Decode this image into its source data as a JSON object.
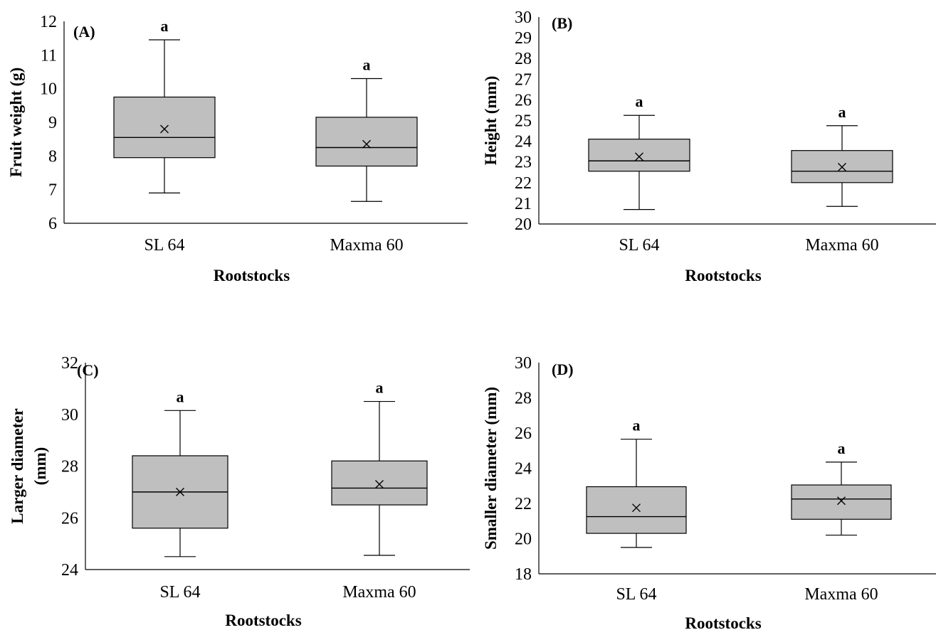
{
  "figure": {
    "colors": {
      "box_fill": "#bfbfbf",
      "stroke": "#000000"
    },
    "mean_marker": "x"
  },
  "chart_data": [
    {
      "type": "box",
      "panel_label": "(A)",
      "xlabel": "Rootstocks",
      "ylabel": "Fruit weight (g)",
      "ylim": [
        6,
        12
      ],
      "yticks": [
        6,
        7,
        8,
        9,
        10,
        11,
        12
      ],
      "categories": [
        "SL 64",
        "Maxma 60"
      ],
      "boxes": [
        {
          "min": 6.9,
          "q1": 7.95,
          "median": 8.55,
          "q3": 9.75,
          "max": 11.45,
          "mean": 8.8,
          "letter": "a"
        },
        {
          "min": 6.65,
          "q1": 7.7,
          "median": 8.25,
          "q3": 9.15,
          "max": 10.3,
          "mean": 8.35,
          "letter": "a"
        }
      ]
    },
    {
      "type": "box",
      "panel_label": "(B)",
      "xlabel": "Rootstocks",
      "ylabel": "Height (mm)",
      "ylim": [
        20,
        30
      ],
      "yticks": [
        20,
        21,
        22,
        23,
        24,
        25,
        26,
        27,
        28,
        29,
        30
      ],
      "categories": [
        "SL 64",
        "Maxma 60"
      ],
      "boxes": [
        {
          "min": 20.7,
          "q1": 22.55,
          "median": 23.05,
          "q3": 24.1,
          "max": 25.25,
          "mean": 23.25,
          "letter": "a"
        },
        {
          "min": 20.85,
          "q1": 22.0,
          "median": 22.55,
          "q3": 23.55,
          "max": 24.75,
          "mean": 22.75,
          "letter": "a"
        }
      ]
    },
    {
      "type": "box",
      "panel_label": "(C)",
      "xlabel": "Rootstocks",
      "ylabel": "Larger diameter (mm)",
      "ylim": [
        24,
        32
      ],
      "yticks": [
        24,
        26,
        28,
        30,
        32
      ],
      "categories": [
        "SL 64",
        "Maxma 60"
      ],
      "boxes": [
        {
          "min": 24.5,
          "q1": 25.6,
          "median": 27.0,
          "q3": 28.4,
          "max": 30.15,
          "mean": 27.0,
          "letter": "a"
        },
        {
          "min": 24.55,
          "q1": 26.5,
          "median": 27.15,
          "q3": 28.2,
          "max": 30.5,
          "mean": 27.3,
          "letter": "a"
        }
      ]
    },
    {
      "type": "box",
      "panel_label": "(D)",
      "xlabel": "Rootstocks",
      "ylabel": "Smaller diameter (mm)",
      "ylim": [
        18,
        30
      ],
      "yticks": [
        18,
        20,
        22,
        24,
        26,
        28,
        30
      ],
      "categories": [
        "SL 64",
        "Maxma 60"
      ],
      "boxes": [
        {
          "min": 19.5,
          "q1": 20.3,
          "median": 21.25,
          "q3": 22.95,
          "max": 25.65,
          "mean": 21.75,
          "letter": "a"
        },
        {
          "min": 20.2,
          "q1": 21.1,
          "median": 22.25,
          "q3": 23.05,
          "max": 24.35,
          "mean": 22.15,
          "letter": "a"
        }
      ]
    }
  ]
}
